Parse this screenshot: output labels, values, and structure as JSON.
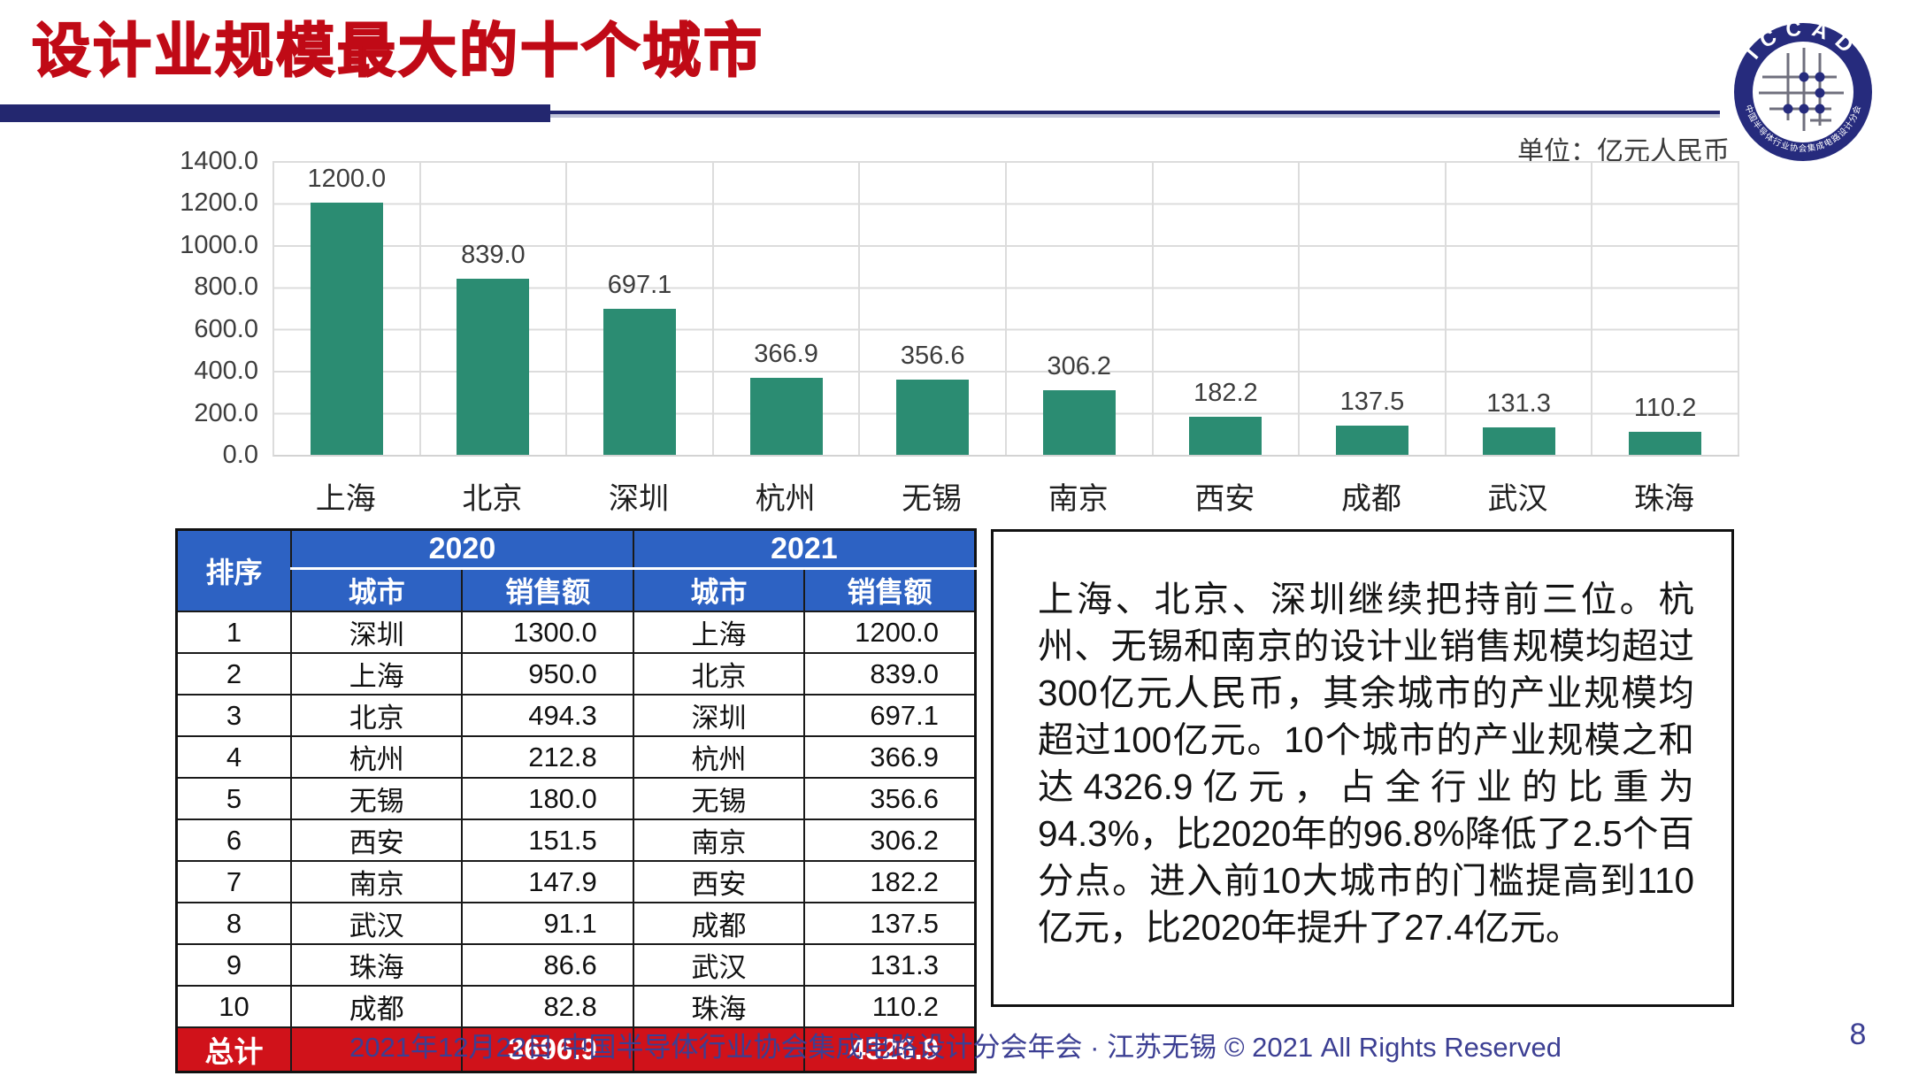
{
  "slide": {
    "title": "设计业规模最大的十个城市",
    "unit_label": "单位：亿元人民币",
    "footer": "2021年12月22日 中国半导体行业协会集成电路设计分会年会 · 江苏无锡 © 2021 All Rights Reserved",
    "page_number": "8"
  },
  "logo": {
    "arc_top": "ICCAD",
    "arc_bottom": "中国半导体行业协会集成电路设计分会"
  },
  "chart_data": {
    "type": "bar",
    "title": "",
    "xlabel": "",
    "ylabel": "",
    "categories": [
      "上海",
      "北京",
      "深圳",
      "杭州",
      "无锡",
      "南京",
      "西安",
      "成都",
      "武汉",
      "珠海"
    ],
    "values": [
      1200.0,
      839.0,
      697.1,
      366.9,
      356.6,
      306.2,
      182.2,
      137.5,
      131.3,
      110.2
    ],
    "value_labels": [
      "1200.0",
      "839.0",
      "697.1",
      "366.9",
      "356.6",
      "306.2",
      "182.2",
      "137.5",
      "131.3",
      "110.2"
    ],
    "ylim": [
      0,
      1400
    ],
    "yticks": [
      "1400.0",
      "1200.0",
      "1000.0",
      "800.0",
      "600.0",
      "400.0",
      "200.0",
      "0.0"
    ],
    "grid": true,
    "legend": false,
    "bar_color": "#2b8c72"
  },
  "table": {
    "col_rank": "排序",
    "group_2020": "2020",
    "group_2021": "2021",
    "col_city": "城市",
    "col_sales": "销售额",
    "rows": [
      {
        "rank": "1",
        "city_2020": "深圳",
        "sales_2020": "1300.0",
        "city_2021": "上海",
        "sales_2021": "1200.0"
      },
      {
        "rank": "2",
        "city_2020": "上海",
        "sales_2020": "950.0",
        "city_2021": "北京",
        "sales_2021": "839.0"
      },
      {
        "rank": "3",
        "city_2020": "北京",
        "sales_2020": "494.3",
        "city_2021": "深圳",
        "sales_2021": "697.1"
      },
      {
        "rank": "4",
        "city_2020": "杭州",
        "sales_2020": "212.8",
        "city_2021": "杭州",
        "sales_2021": "366.9"
      },
      {
        "rank": "5",
        "city_2020": "无锡",
        "sales_2020": "180.0",
        "city_2021": "无锡",
        "sales_2021": "356.6"
      },
      {
        "rank": "6",
        "city_2020": "西安",
        "sales_2020": "151.5",
        "city_2021": "南京",
        "sales_2021": "306.2"
      },
      {
        "rank": "7",
        "city_2020": "南京",
        "sales_2020": "147.9",
        "city_2021": "西安",
        "sales_2021": "182.2"
      },
      {
        "rank": "8",
        "city_2020": "武汉",
        "sales_2020": "91.1",
        "city_2021": "成都",
        "sales_2021": "137.5"
      },
      {
        "rank": "9",
        "city_2020": "珠海",
        "sales_2020": "86.6",
        "city_2021": "武汉",
        "sales_2021": "131.3"
      },
      {
        "rank": "10",
        "city_2020": "成都",
        "sales_2020": "82.8",
        "city_2021": "珠海",
        "sales_2021": "110.2"
      }
    ],
    "total": {
      "label": "总计",
      "sales_2020": "3696.9",
      "sales_2021": "4326.9"
    }
  },
  "analysis": {
    "text": "上海、北京、深圳继续把持前三位。杭州、无锡和南京的设计业销售规模均超过300亿元人民币，其余城市的产业规模均超过100亿元。10个城市的产业规模之和达4326.9亿元，占全行业的比重为94.3%，比2020年的96.8%降低了2.5个百分点。进入前10大城市的门槛提高到110亿元，比2020年提升了27.4亿元。"
  },
  "colors": {
    "title_red": "#c00a16",
    "rule_navy": "#23276f",
    "bar_teal": "#2b8c72",
    "header_blue": "#2d62c3",
    "total_red": "#d0121a",
    "footer_indigo": "#3c3f93",
    "gridline": "#dcdcdc"
  }
}
